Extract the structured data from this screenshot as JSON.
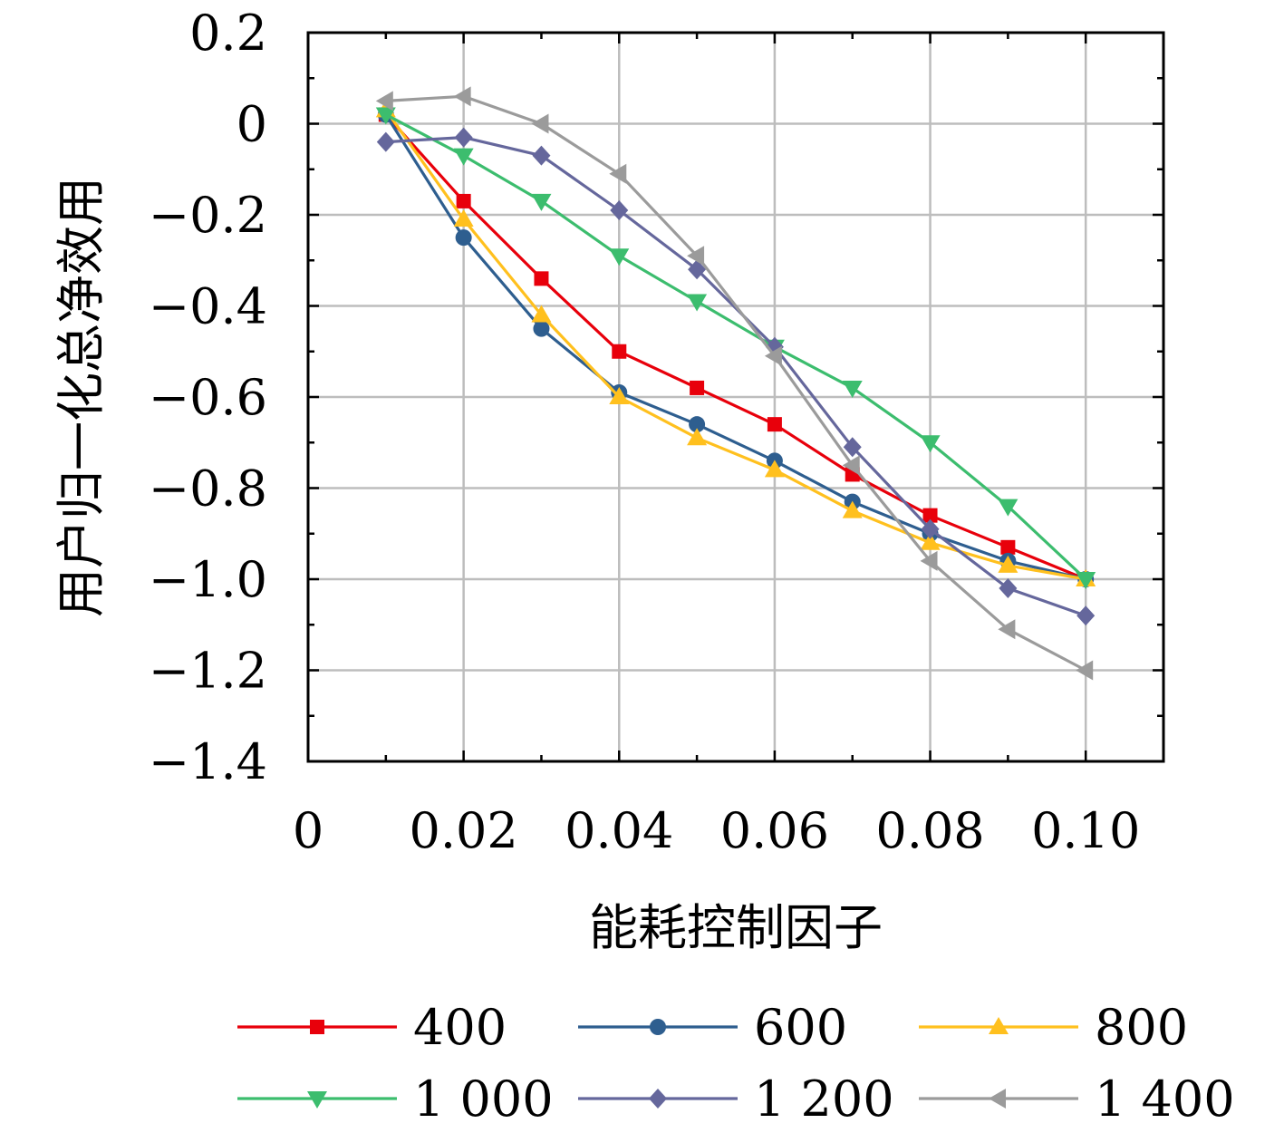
{
  "chart_data": {
    "type": "line",
    "title": "",
    "xlabel": "能耗控制因子",
    "ylabel": "用户归一化总净效用",
    "xlim": [
      0,
      0.11
    ],
    "ylim": [
      -1.4,
      0.2
    ],
    "x_ticks": [
      0,
      0.02,
      0.04,
      0.06,
      0.08,
      0.1
    ],
    "x_tick_labels": [
      "0",
      "0.02",
      "0.04",
      "0.06",
      "0.08",
      "0.10"
    ],
    "y_ticks": [
      0.2,
      0,
      -0.2,
      -0.4,
      -0.6,
      -0.8,
      -1.0,
      -1.2,
      -1.4
    ],
    "y_tick_labels": [
      "0.2",
      "0",
      "−0.2",
      "−0.4",
      "−0.6",
      "−0.8",
      "−1.0",
      "−1.2",
      "−1.4"
    ],
    "grid": true,
    "legend_position": "bottom",
    "x": [
      0.01,
      0.02,
      0.03,
      0.04,
      0.05,
      0.06,
      0.07,
      0.08,
      0.09,
      0.1
    ],
    "series": [
      {
        "name": "400",
        "color": "#e8000b",
        "marker": "square",
        "values": [
          0.02,
          -0.17,
          -0.34,
          -0.5,
          -0.58,
          -0.66,
          -0.77,
          -0.86,
          -0.93,
          -1.0
        ]
      },
      {
        "name": "600",
        "color": "#2e5e8f",
        "marker": "circle",
        "values": [
          0.02,
          -0.25,
          -0.45,
          -0.59,
          -0.66,
          -0.74,
          -0.83,
          -0.9,
          -0.96,
          -1.0
        ]
      },
      {
        "name": "800",
        "color": "#ffc01e",
        "marker": "triangle-up",
        "values": [
          0.03,
          -0.21,
          -0.42,
          -0.6,
          -0.69,
          -0.76,
          -0.85,
          -0.92,
          -0.97,
          -1.0
        ]
      },
      {
        "name": "1 000",
        "color": "#3cbd6e",
        "marker": "triangle-down",
        "values": [
          0.02,
          -0.07,
          -0.17,
          -0.29,
          -0.39,
          -0.49,
          -0.58,
          -0.7,
          -0.84,
          -1.0
        ]
      },
      {
        "name": "1 200",
        "color": "#65679c",
        "marker": "diamond",
        "values": [
          -0.04,
          -0.03,
          -0.07,
          -0.19,
          -0.32,
          -0.49,
          -0.71,
          -0.89,
          -1.02,
          -1.08
        ]
      },
      {
        "name": "1 400",
        "color": "#9b9b9b",
        "marker": "triangle-left",
        "values": [
          0.05,
          0.06,
          0.0,
          -0.11,
          -0.29,
          -0.51,
          -0.75,
          -0.96,
          -1.11,
          -1.2
        ]
      }
    ]
  }
}
